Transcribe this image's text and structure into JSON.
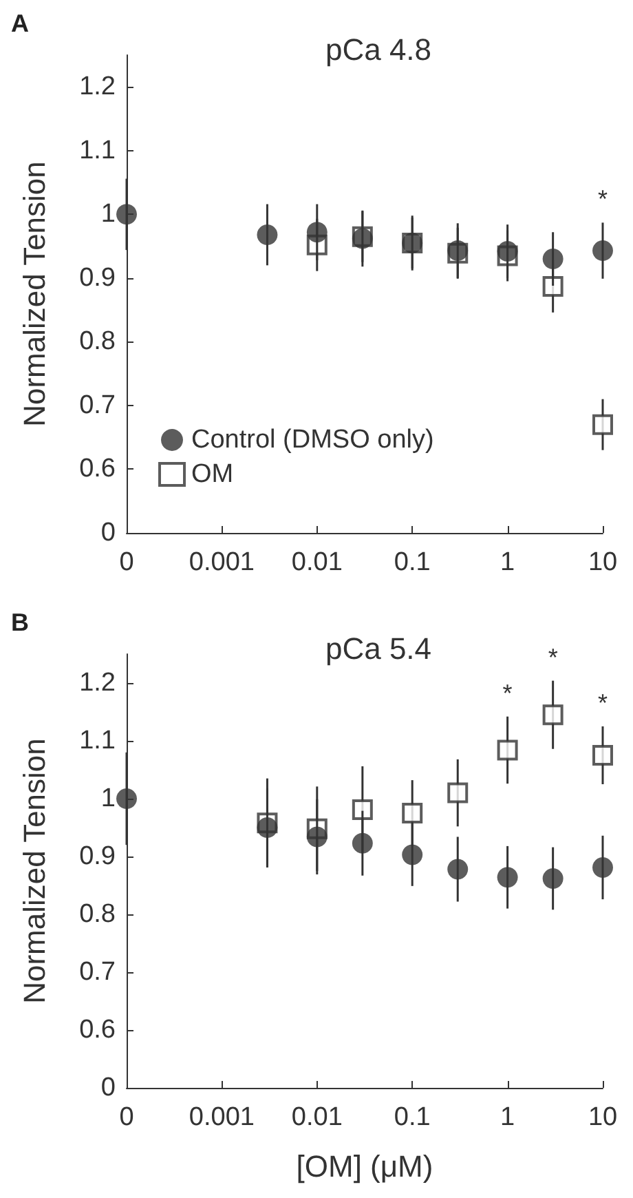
{
  "chart_data": [
    {
      "type": "scatter",
      "title": "pCa 4.8",
      "ylabel": "Normalized Tension",
      "annotations": [
        "A"
      ],
      "x": [
        0.0001,
        0.003,
        0.01,
        0.03,
        0.1,
        0.3,
        1,
        3,
        10
      ],
      "series": [
        {
          "name": "OM",
          "color": "#333333",
          "marker": "square",
          "values": [
            null,
            null,
            0.952,
            0.965,
            0.955,
            0.939,
            0.935,
            0.887,
            0.67
          ],
          "errors": [
            null,
            null,
            0.041,
            0.04,
            0.04,
            0.04,
            0.04,
            0.041,
            0.04
          ]
        },
        {
          "name": "Control (DMSO only)",
          "color": "#333333",
          "marker": "circle",
          "values": [
            1.0,
            0.968,
            0.972,
            0.962,
            0.955,
            0.943,
            0.942,
            0.93,
            0.943
          ],
          "errors": [
            0.056,
            0.048,
            0.044,
            0.044,
            0.043,
            0.043,
            0.042,
            0.042,
            0.044
          ],
          "value_labels": [
            null,
            null,
            null,
            null,
            null,
            null,
            null,
            null,
            "*"
          ]
        }
      ],
      "log": "x",
      "xlim": [
        0.0001,
        10
      ],
      "xticks": [
        {
          "value": 0.0001,
          "label": "0"
        },
        0.001,
        0.01,
        0.1,
        1,
        10
      ],
      "ylim": [
        0.5,
        1.25
      ],
      "yticks": [
        {
          "value": 0.5,
          "label": "0"
        },
        0.6,
        0.7,
        0.8,
        0.9,
        1,
        1.1,
        1.2
      ],
      "legend": "bottom left",
      "grid": false
    },
    {
      "type": "scatter",
      "title": "pCa 5.4",
      "xlabel": "[OM] (μM)",
      "ylabel": "Normalized Tension",
      "annotations": [
        "B"
      ],
      "x": [
        0.0001,
        0.003,
        0.01,
        0.03,
        0.1,
        0.3,
        1,
        3,
        10
      ],
      "series": [
        {
          "color": "#333333",
          "marker": "square",
          "values": [
            null,
            0.958,
            0.948,
            0.981,
            0.975,
            1.01,
            1.084,
            1.145,
            1.075
          ],
          "errors": [
            null,
            0.077,
            0.073,
            0.075,
            0.057,
            0.058,
            0.058,
            0.059,
            0.05
          ],
          "value_labels": [
            null,
            null,
            null,
            null,
            null,
            null,
            "*",
            "*",
            "*"
          ]
        },
        {
          "color": "#333333",
          "marker": "circle",
          "values": [
            1.0,
            0.95,
            0.934,
            0.923,
            0.903,
            0.878,
            0.864,
            0.862,
            0.881
          ],
          "errors": [
            0.08,
            0.068,
            0.065,
            0.056,
            0.054,
            0.056,
            0.054,
            0.054,
            0.055
          ]
        }
      ],
      "log": "x",
      "xlim": [
        0.0001,
        10
      ],
      "xticks": [
        {
          "value": 0.0001,
          "label": "0"
        },
        0.001,
        0.01,
        0.1,
        1,
        10
      ],
      "ylim": [
        0.5,
        1.25
      ],
      "yticks": [
        {
          "value": 0.5,
          "label": "0"
        },
        0.6,
        0.7,
        0.8,
        0.9,
        1,
        1.1,
        1.2
      ],
      "legend": false,
      "grid": false
    }
  ]
}
